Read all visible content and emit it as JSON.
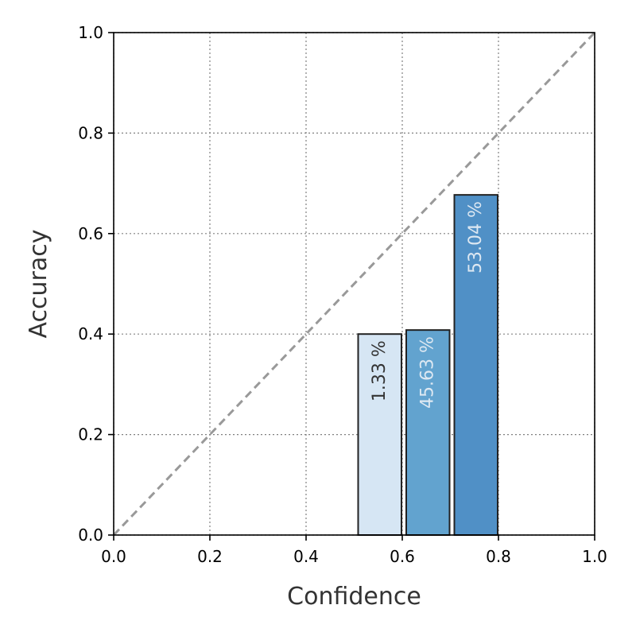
{
  "chart_data": {
    "type": "bar",
    "title": "",
    "xlabel": "Confidence",
    "ylabel": "Accuracy",
    "xlim": [
      0.0,
      1.0
    ],
    "ylim": [
      0.0,
      1.0
    ],
    "xticks": [
      "0.0",
      "0.2",
      "0.4",
      "0.6",
      "0.8",
      "1.0"
    ],
    "yticks": [
      "0.0",
      "0.2",
      "0.4",
      "0.6",
      "0.8",
      "1.0"
    ],
    "grid": true,
    "diagonal_reference": true,
    "bin_width": 0.1,
    "bars": [
      {
        "x_start": 0.5,
        "x_end": 0.6,
        "accuracy": 0.4,
        "label": "1.33 %",
        "color": "#d6e6f4",
        "label_color": "#333333"
      },
      {
        "x_start": 0.6,
        "x_end": 0.7,
        "accuracy": 0.408,
        "label": "45.63 %",
        "color": "#62a3cf",
        "label_color": "#dde8f2"
      },
      {
        "x_start": 0.7,
        "x_end": 0.8,
        "accuracy": 0.677,
        "label": "53.04 %",
        "color": "#5090c6",
        "label_color": "#dde8f2"
      }
    ],
    "colors": {
      "reference_line": "#999999",
      "grid": "#808080",
      "bar_edge": "#222222"
    }
  }
}
